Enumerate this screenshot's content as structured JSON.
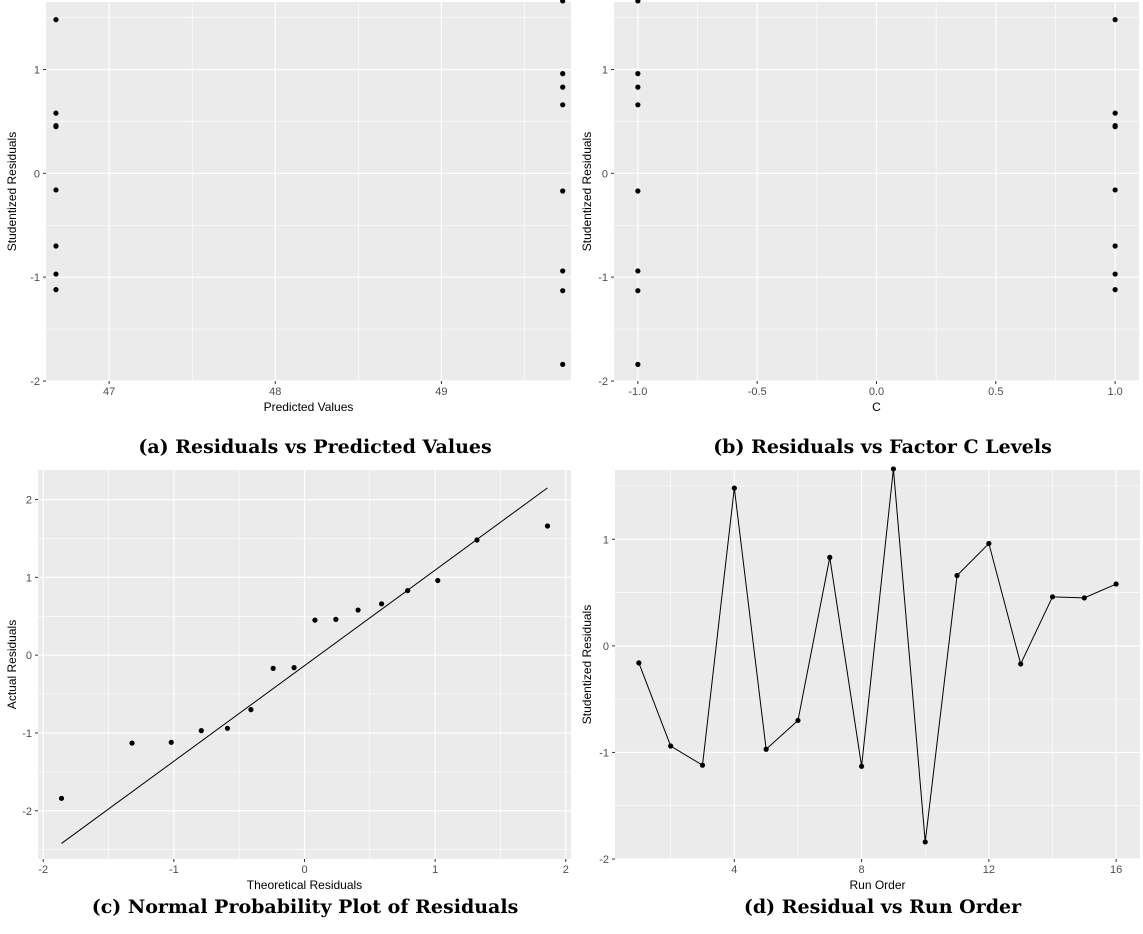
{
  "chart_data": [
    {
      "type": "scatter",
      "caption": "(a) Residuals vs Predicted Values",
      "xlabel": "Predicted Values",
      "ylabel": "Studentized Residuals",
      "xlim": [
        46.62,
        49.78
      ],
      "ylim": [
        -2.0,
        1.65
      ],
      "xticks": [
        47,
        48,
        49
      ],
      "xticklabels": [
        "47",
        "48",
        "49"
      ],
      "yticks": [
        -2,
        -1,
        0,
        1
      ],
      "yticklabels": [
        "-2",
        "-1",
        "0",
        "1"
      ],
      "grid": true,
      "x": [
        46.68,
        46.68,
        46.68,
        46.68,
        46.68,
        46.68,
        46.68,
        46.68,
        49.73,
        49.73,
        49.73,
        49.73,
        49.73,
        49.73,
        49.73,
        49.73
      ],
      "y": [
        1.48,
        0.58,
        0.46,
        0.45,
        -0.16,
        -0.7,
        -0.97,
        -1.12,
        1.66,
        0.96,
        0.83,
        0.66,
        -0.17,
        -0.94,
        -1.13,
        -1.84
      ]
    },
    {
      "type": "scatter",
      "caption": "(b) Residuals vs Factor C Levels",
      "xlabel": "C",
      "ylabel": "Studentized Residuals",
      "xlim": [
        -1.1,
        1.1
      ],
      "ylim": [
        -2.0,
        1.65
      ],
      "xticks": [
        -1.0,
        -0.5,
        0.0,
        0.5,
        1.0
      ],
      "xticklabels": [
        "-1.0",
        "-0.5",
        "0.0",
        "0.5",
        "1.0"
      ],
      "yticks": [
        -2,
        -1,
        0,
        1
      ],
      "yticklabels": [
        "-2",
        "-1",
        "0",
        "1"
      ],
      "grid": true,
      "x": [
        -1,
        -1,
        -1,
        -1,
        -1,
        -1,
        -1,
        -1,
        1,
        1,
        1,
        1,
        1,
        1,
        1,
        1
      ],
      "y": [
        1.66,
        0.96,
        0.83,
        0.66,
        -0.17,
        -0.94,
        -1.13,
        -1.84,
        1.48,
        0.58,
        0.46,
        0.45,
        -0.16,
        -0.7,
        -0.97,
        -1.12
      ]
    },
    {
      "type": "scatter",
      "caption": "(c) Normal Probability Plot of Residuals",
      "xlabel": "Theoretical Residuals",
      "ylabel": "Actual Residuals",
      "xlim": [
        -2.04,
        2.04
      ],
      "ylim": [
        -2.62,
        2.38
      ],
      "xticks": [
        -2,
        -1,
        0,
        1,
        2
      ],
      "xticklabels": [
        "-2",
        "-1",
        "0",
        "1",
        "2"
      ],
      "yticks": [
        -2,
        -1,
        0,
        1,
        2
      ],
      "yticklabels": [
        "-2",
        "-1",
        "0",
        "1",
        "2"
      ],
      "grid": true,
      "x": [
        -1.86,
        -1.32,
        -1.02,
        -0.79,
        -0.59,
        -0.41,
        -0.24,
        -0.08,
        0.08,
        0.24,
        0.41,
        0.59,
        0.79,
        1.02,
        1.32,
        1.86
      ],
      "y": [
        -1.84,
        -1.13,
        -1.12,
        -0.97,
        -0.94,
        -0.7,
        -0.17,
        -0.16,
        0.45,
        0.46,
        0.58,
        0.66,
        0.83,
        0.96,
        1.48,
        1.66
      ],
      "reference_line": {
        "x": [
          -1.86,
          1.86
        ],
        "y": [
          -2.42,
          2.15
        ]
      }
    },
    {
      "type": "line",
      "caption": "(d) Residual vs Run Order",
      "xlabel": "Run Order",
      "ylabel": "Studentized Residuals",
      "xlim": [
        0.25,
        16.75
      ],
      "ylim": [
        -2.0,
        1.65
      ],
      "xticks": [
        4,
        8,
        12,
        16
      ],
      "xticklabels": [
        "4",
        "8",
        "12",
        "16"
      ],
      "yticks": [
        -2,
        -1,
        0,
        1
      ],
      "yticklabels": [
        "-2",
        "-1",
        "0",
        "1"
      ],
      "grid": true,
      "markers": true,
      "x": [
        1,
        2,
        3,
        4,
        5,
        6,
        7,
        8,
        9,
        10,
        11,
        12,
        13,
        14,
        15,
        16
      ],
      "y": [
        -0.16,
        -0.94,
        -1.12,
        1.48,
        -0.97,
        -0.7,
        0.83,
        -1.13,
        1.66,
        -1.84,
        0.66,
        0.96,
        -0.17,
        0.46,
        0.45,
        0.58
      ]
    }
  ]
}
